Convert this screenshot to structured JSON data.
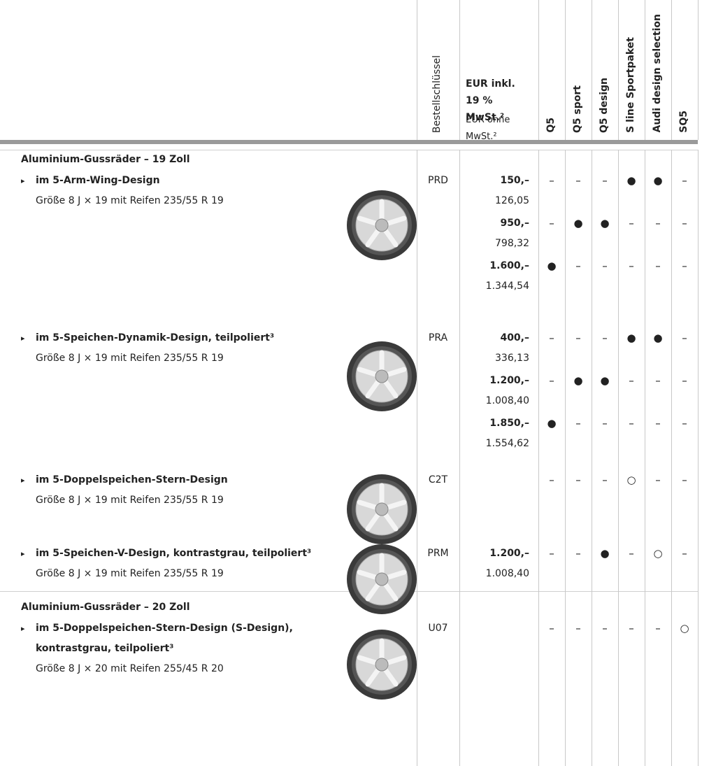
{
  "header": {
    "order_key": "Bestellschlüssel",
    "price_gross": "EUR inkl. 19 % MwSt.²",
    "price_net": "EUR ohne MwSt.²",
    "models": [
      "Q5",
      "Q5 sport",
      "Q5 design",
      "S line Sportpaket",
      "Audi design selection",
      "SQ5"
    ]
  },
  "sections": [
    {
      "title": "Aluminium-Gussräder – 19 Zoll",
      "items": [
        {
          "name": "im 5-Arm-Wing-Design",
          "size": "Größe 8 J × 19 mit Reifen 235/55 R 19",
          "code": "PRD",
          "offers": [
            {
              "gross": "150,–",
              "net": "126,05",
              "availability": [
                "–",
                "–",
                "–",
                "●",
                "●",
                "–"
              ]
            },
            {
              "gross": "950,–",
              "net": "798,32",
              "availability": [
                "–",
                "●",
                "●",
                "–",
                "–",
                "–"
              ]
            },
            {
              "gross": "1.600,–",
              "net": "1.344,54",
              "availability": [
                "●",
                "–",
                "–",
                "–",
                "–",
                "–"
              ]
            }
          ]
        },
        {
          "name": "im 5-Speichen-Dynamik-Design, teilpoliert³",
          "size": "Größe 8 J × 19 mit Reifen 235/55 R 19",
          "code": "PRA",
          "offers": [
            {
              "gross": "400,–",
              "net": "336,13",
              "availability": [
                "–",
                "–",
                "–",
                "●",
                "●",
                "–"
              ]
            },
            {
              "gross": "1.200,–",
              "net": "1.008,40",
              "availability": [
                "–",
                "●",
                "●",
                "–",
                "–",
                "–"
              ]
            },
            {
              "gross": "1.850,–",
              "net": "1.554,62",
              "availability": [
                "●",
                "–",
                "–",
                "–",
                "–",
                "–"
              ]
            }
          ]
        },
        {
          "name": "im 5-Doppelspeichen-Stern-Design",
          "size": "Größe 8 J × 19 mit Reifen 235/55 R 19",
          "code": "C2T",
          "offers": [
            {
              "availability": [
                "–",
                "–",
                "–",
                "○",
                "–",
                "–"
              ]
            }
          ]
        },
        {
          "name": "im 5-Speichen-V-Design, kontrastgrau, teilpoliert³",
          "size": "Größe 8 J × 19 mit Reifen 235/55 R 19",
          "code": "PRM",
          "offers": [
            {
              "gross": "1.200,–",
              "net": "1.008,40",
              "availability": [
                "–",
                "–",
                "●",
                "–",
                "○",
                "–"
              ]
            }
          ]
        }
      ]
    },
    {
      "title": "Aluminium-Gussräder – 20 Zoll",
      "items": [
        {
          "name": "im 5-Doppelspeichen-Stern-Design (S-Design), kontrastgrau, teilpoliert³",
          "size": "Größe 8 J × 20 mit Reifen 255/45 R 20",
          "code": "U07",
          "offers": [
            {
              "availability": [
                "–",
                "–",
                "–",
                "–",
                "–",
                "○"
              ]
            }
          ]
        }
      ]
    }
  ]
}
